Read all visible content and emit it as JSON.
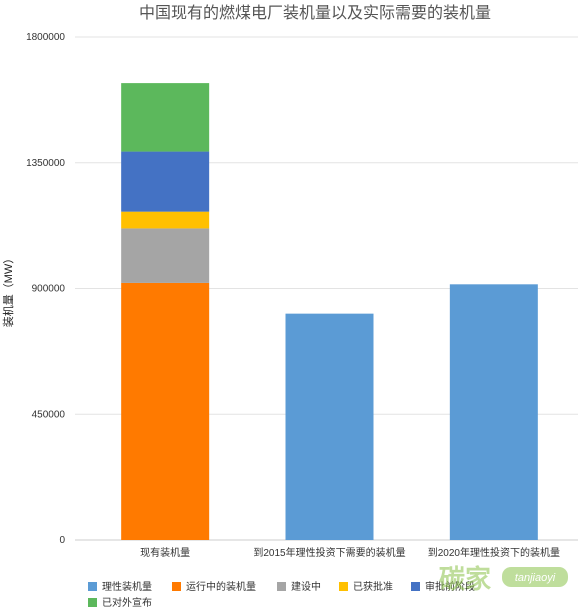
{
  "chart_data": {
    "type": "bar",
    "stacked": true,
    "title": "中国现有的燃煤电厂装机量以及实际需要的装机量",
    "ylabel": "装机量（MW）",
    "xlabel": "",
    "ylim": [
      0,
      1800000
    ],
    "yticks": [
      0,
      450000,
      900000,
      1350000,
      1800000
    ],
    "grid": true,
    "legend_position": "bottom",
    "categories": [
      "现有装机量",
      "到2015年理性投资下需要的装机量",
      "到2020年理性投资下的装机量"
    ],
    "series": [
      {
        "name": "理性装机量",
        "color": "#5b9bd5",
        "values": [
          0,
          810000,
          915000
        ]
      },
      {
        "name": "运行中的装机量",
        "color": "#ff7a00",
        "values": [
          920000,
          0,
          0
        ]
      },
      {
        "name": "建设中",
        "color": "#a5a5a5",
        "values": [
          195000,
          0,
          0
        ]
      },
      {
        "name": "已获批准",
        "color": "#ffc000",
        "values": [
          60000,
          0,
          0
        ]
      },
      {
        "name": "审批前阶段",
        "color": "#4472c4",
        "values": [
          215000,
          0,
          0
        ]
      },
      {
        "name": "已对外宣布",
        "color": "#5cb85c",
        "values": [
          245000,
          0,
          0
        ]
      }
    ]
  },
  "legend_labels": [
    "理性装机量",
    "运行中的装机量",
    "建设中",
    "已获批准",
    "审批前阶段",
    "已对外宣布"
  ],
  "watermark": {
    "text": "碳家",
    "sub": "tanjiaoyi"
  }
}
